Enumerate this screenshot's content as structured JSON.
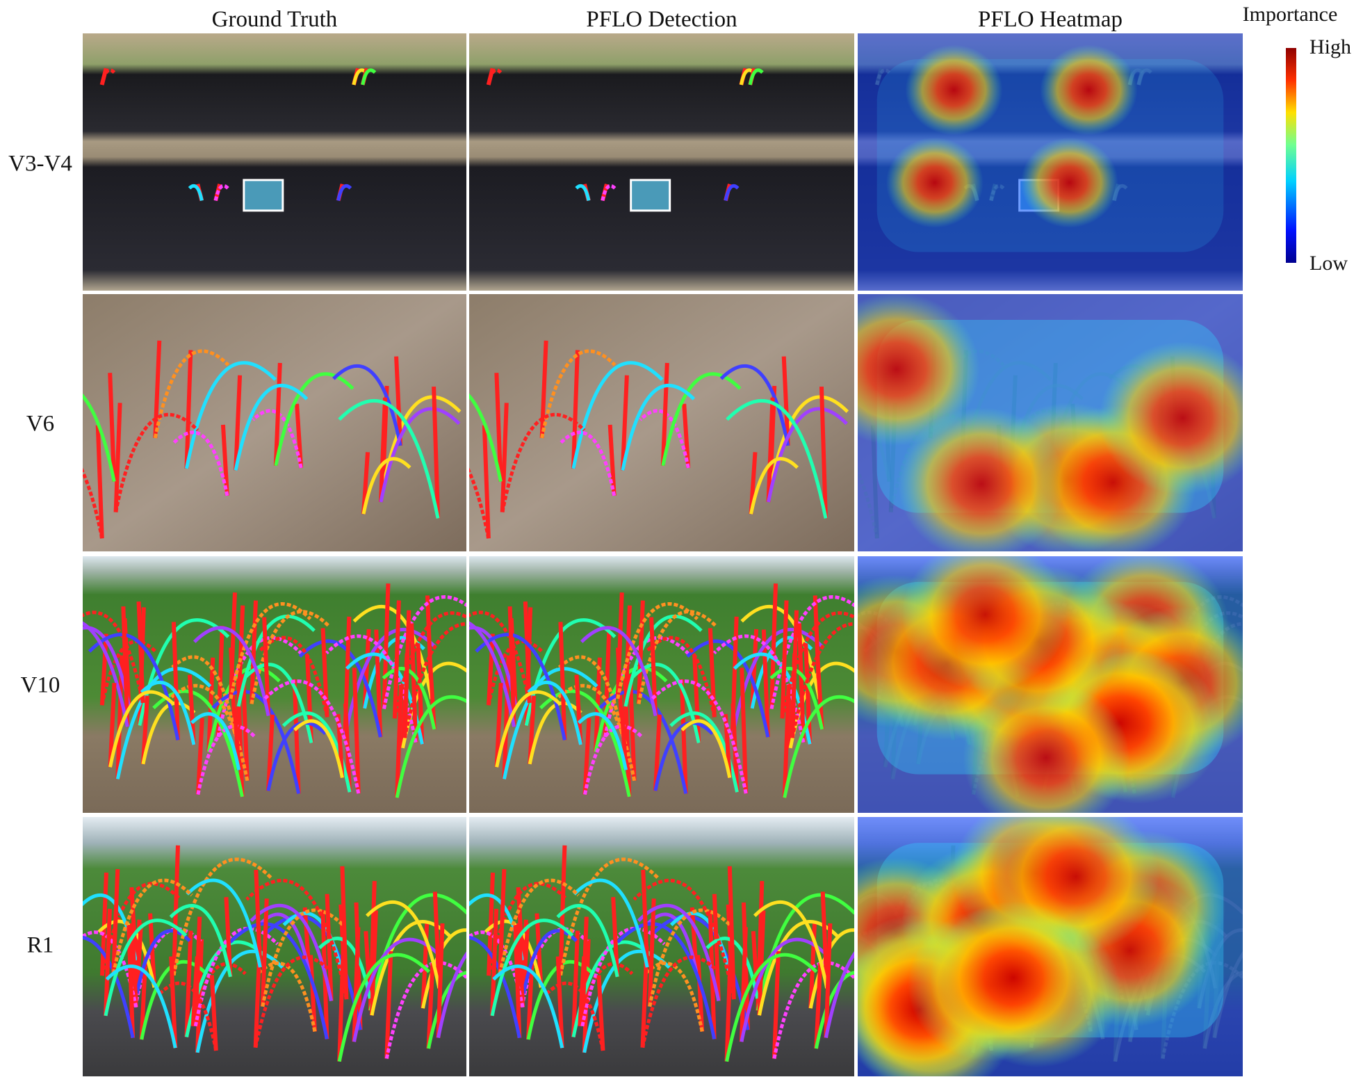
{
  "figure": {
    "columns": [
      "Ground Truth",
      "PFLO Detection",
      "PFLO Heatmap"
    ],
    "rows": [
      "V3-V4",
      "V6",
      "V10",
      "R1"
    ],
    "colorbar": {
      "title": "Importance",
      "high": "High",
      "low": "Low"
    }
  }
}
